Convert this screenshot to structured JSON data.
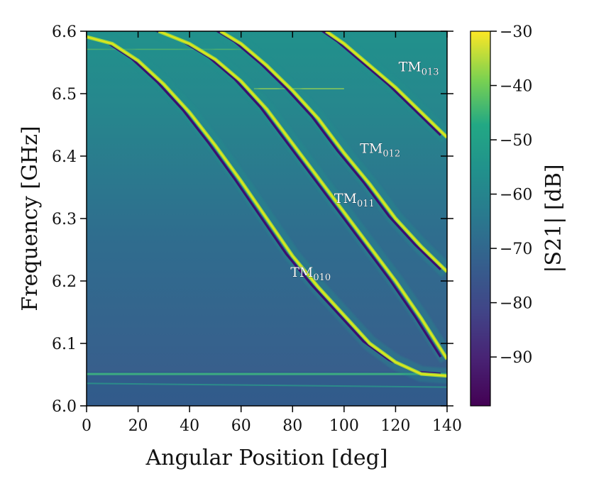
{
  "chart_data": {
    "type": "heatmap",
    "title": "",
    "xlabel": "Angular Position [deg]",
    "ylabel": "Frequency [GHz]",
    "xlim": [
      0,
      140
    ],
    "ylim": [
      6.0,
      6.6
    ],
    "x_ticks": [
      "0",
      "20",
      "40",
      "60",
      "80",
      "100",
      "120",
      "140"
    ],
    "y_ticks": [
      "6.0",
      "6.1",
      "6.2",
      "6.3",
      "6.4",
      "6.5",
      "6.6"
    ],
    "colorbar": {
      "label": "|S21| [dB]",
      "range": [
        -99,
        -30
      ],
      "ticks": [
        "−30",
        "−40",
        "−50",
        "−60",
        "−70",
        "−80",
        "−90"
      ],
      "colormap": "viridis"
    },
    "modes": [
      {
        "name": "TM",
        "sub": "010",
        "label_at": [
          87,
          6.207
        ],
        "curve": [
          [
            0,
            6.591
          ],
          [
            10,
            6.58
          ],
          [
            20,
            6.553
          ],
          [
            30,
            6.515
          ],
          [
            40,
            6.47
          ],
          [
            50,
            6.417
          ],
          [
            60,
            6.36
          ],
          [
            70,
            6.3
          ],
          [
            80,
            6.24
          ],
          [
            90,
            6.19
          ],
          [
            100,
            6.145
          ],
          [
            110,
            6.1
          ],
          [
            120,
            6.07
          ],
          [
            130,
            6.051
          ],
          [
            140,
            6.048
          ]
        ]
      },
      {
        "name": "TM",
        "sub": "011",
        "label_at": [
          104,
          6.325
        ],
        "curve": [
          [
            28,
            6.6
          ],
          [
            40,
            6.58
          ],
          [
            50,
            6.555
          ],
          [
            60,
            6.52
          ],
          [
            70,
            6.475
          ],
          [
            80,
            6.42
          ],
          [
            90,
            6.365
          ],
          [
            100,
            6.31
          ],
          [
            110,
            6.255
          ],
          [
            120,
            6.2
          ],
          [
            130,
            6.14
          ],
          [
            140,
            6.075
          ]
        ]
      },
      {
        "name": "TM",
        "sub": "012",
        "label_at": [
          114,
          6.405
        ],
        "curve": [
          [
            52,
            6.6
          ],
          [
            60,
            6.58
          ],
          [
            70,
            6.545
          ],
          [
            80,
            6.505
          ],
          [
            90,
            6.46
          ],
          [
            100,
            6.405
          ],
          [
            110,
            6.355
          ],
          [
            120,
            6.3
          ],
          [
            130,
            6.255
          ],
          [
            140,
            6.215
          ]
        ]
      },
      {
        "name": "TM",
        "sub": "013",
        "label_at": [
          129,
          6.536
        ],
        "curve": [
          [
            93,
            6.6
          ],
          [
            100,
            6.58
          ],
          [
            110,
            6.545
          ],
          [
            120,
            6.51
          ],
          [
            130,
            6.47
          ],
          [
            140,
            6.43
          ]
        ]
      }
    ]
  }
}
